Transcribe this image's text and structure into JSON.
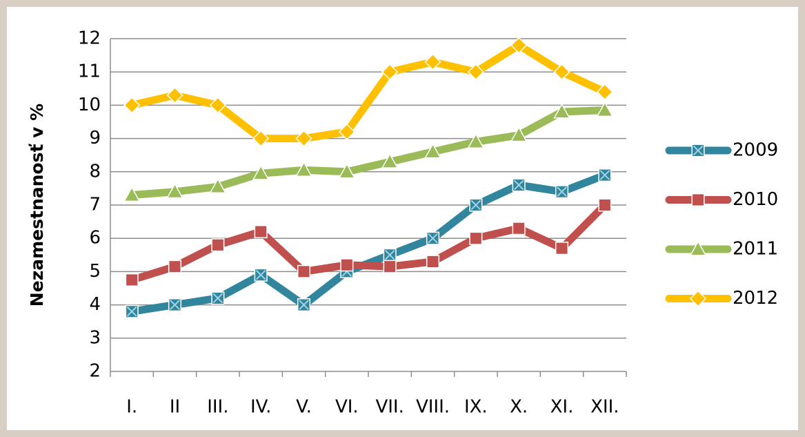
{
  "chart_data": {
    "type": "line",
    "y_label": "Nezamestnanosť v %",
    "categories": [
      "I.",
      "II",
      "III.",
      "IV.",
      "V.",
      "VI.",
      "VII.",
      "VIII.",
      "IX.",
      "X.",
      "XI.",
      "XII."
    ],
    "series": [
      {
        "name": "2009",
        "color": "#31859c",
        "marker": "square-x",
        "values": [
          3.8,
          4.0,
          4.2,
          4.9,
          4.0,
          5.0,
          5.5,
          6.0,
          7.0,
          7.6,
          7.4,
          7.9
        ]
      },
      {
        "name": "2010",
        "color": "#c0504d",
        "marker": "square",
        "values": [
          4.75,
          5.15,
          5.8,
          6.2,
          5.0,
          5.2,
          5.15,
          5.3,
          6.0,
          6.3,
          5.7,
          7.0
        ]
      },
      {
        "name": "2011",
        "color": "#9bbb59",
        "marker": "triangle",
        "values": [
          7.3,
          7.4,
          7.55,
          7.95,
          8.05,
          8.0,
          8.3,
          8.6,
          8.9,
          9.1,
          9.8,
          9.85
        ]
      },
      {
        "name": "2012",
        "color": "#ffc000",
        "marker": "diamond",
        "values": [
          10.0,
          10.3,
          10.0,
          9.0,
          9.0,
          9.2,
          11.0,
          11.3,
          11.0,
          11.8,
          11.0,
          10.4
        ]
      }
    ],
    "ylim": [
      2,
      12
    ],
    "yticks": [
      2,
      3,
      4,
      5,
      6,
      7,
      8,
      9,
      10,
      11,
      12
    ],
    "grid": true,
    "legend": "right"
  }
}
